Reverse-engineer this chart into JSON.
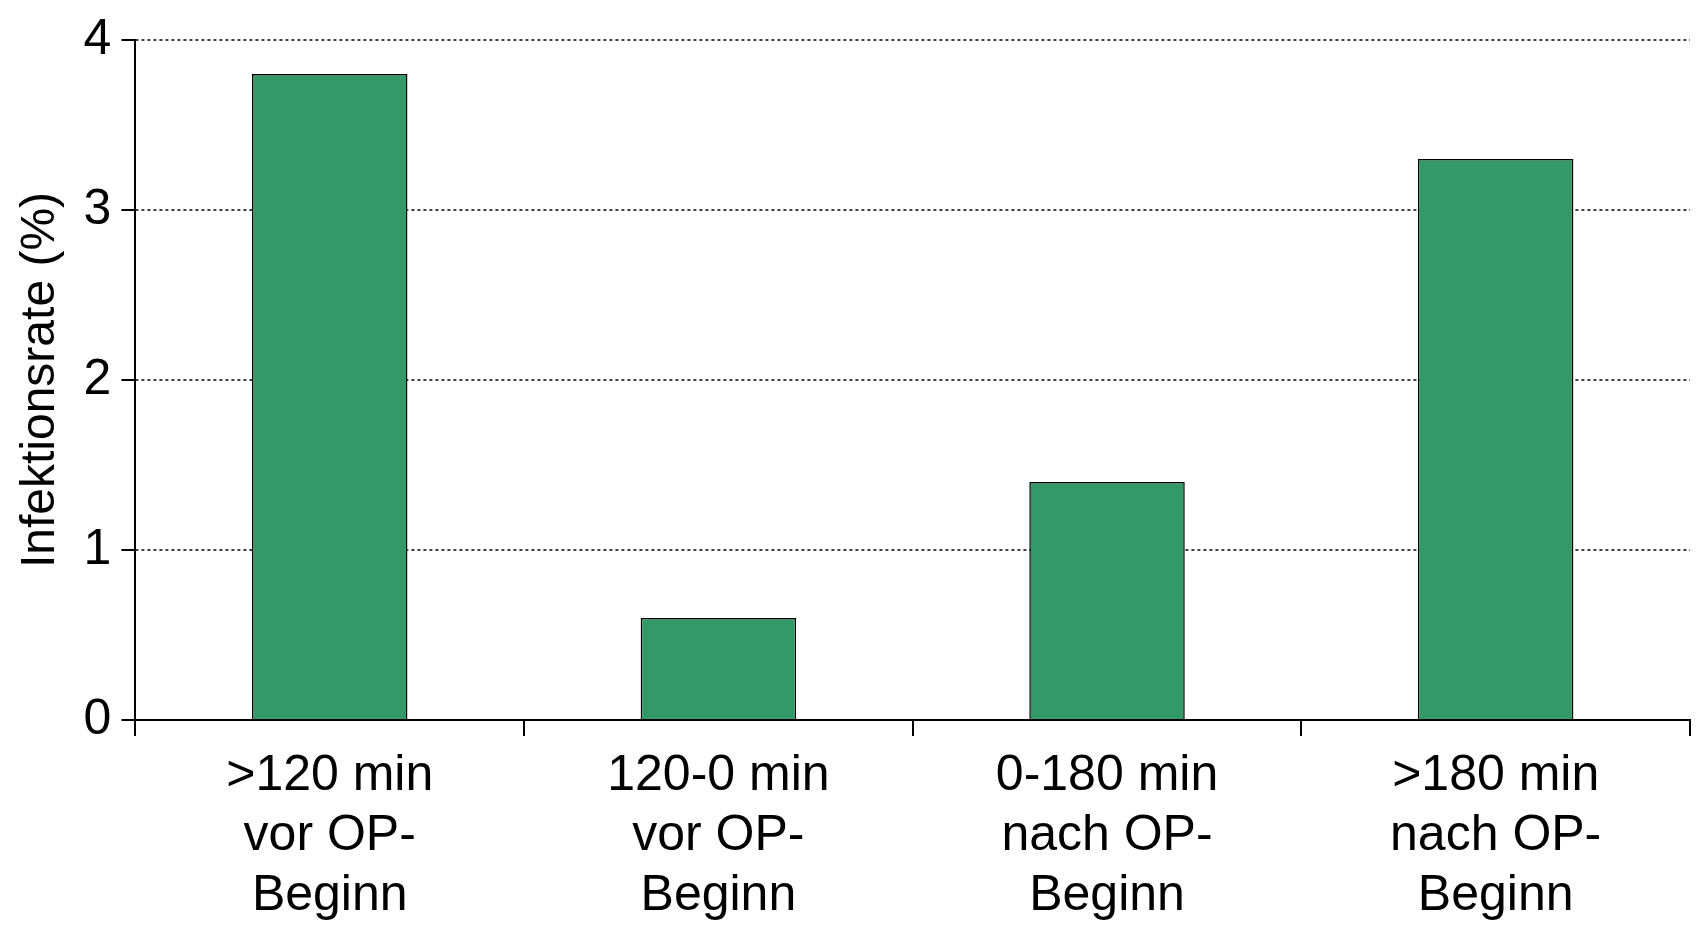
{
  "chart_data": {
    "type": "bar",
    "ylabel": "Infektionsrate (%)",
    "categories": [
      ">120 min vor OP-Beginn",
      "120-0 min vor OP-Beginn",
      "0-180 min nach OP-Beginn",
      ">180 min nach OP-Beginn"
    ],
    "values": [
      3.8,
      0.6,
      1.4,
      3.3
    ],
    "color": "#339966",
    "ylim": [
      0,
      4
    ],
    "yticks": [
      0,
      1,
      2,
      3,
      4
    ],
    "grid": "y",
    "legend": false
  }
}
